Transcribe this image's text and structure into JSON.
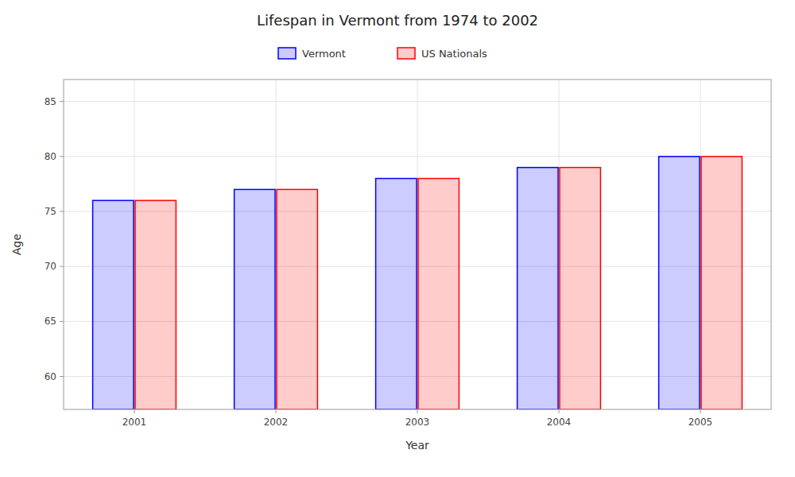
{
  "chart_data": {
    "type": "bar",
    "title": "Lifespan in Vermont from 1974 to 2002",
    "x_label": "Year",
    "y_label": "Age",
    "categories": [
      "2001",
      "2002",
      "2003",
      "2004",
      "2005"
    ],
    "series": [
      {
        "name": "Vermont",
        "color": "#0000ff",
        "values": [
          76,
          77,
          78,
          79,
          80
        ]
      },
      {
        "name": "US Nationals",
        "color": "#ff0000",
        "values": [
          76,
          77,
          78,
          79,
          80
        ]
      }
    ],
    "ylim": [
      57,
      87
    ],
    "yticks": [
      60,
      65,
      70,
      75,
      80,
      85
    ],
    "grid": true,
    "legend": "top"
  }
}
